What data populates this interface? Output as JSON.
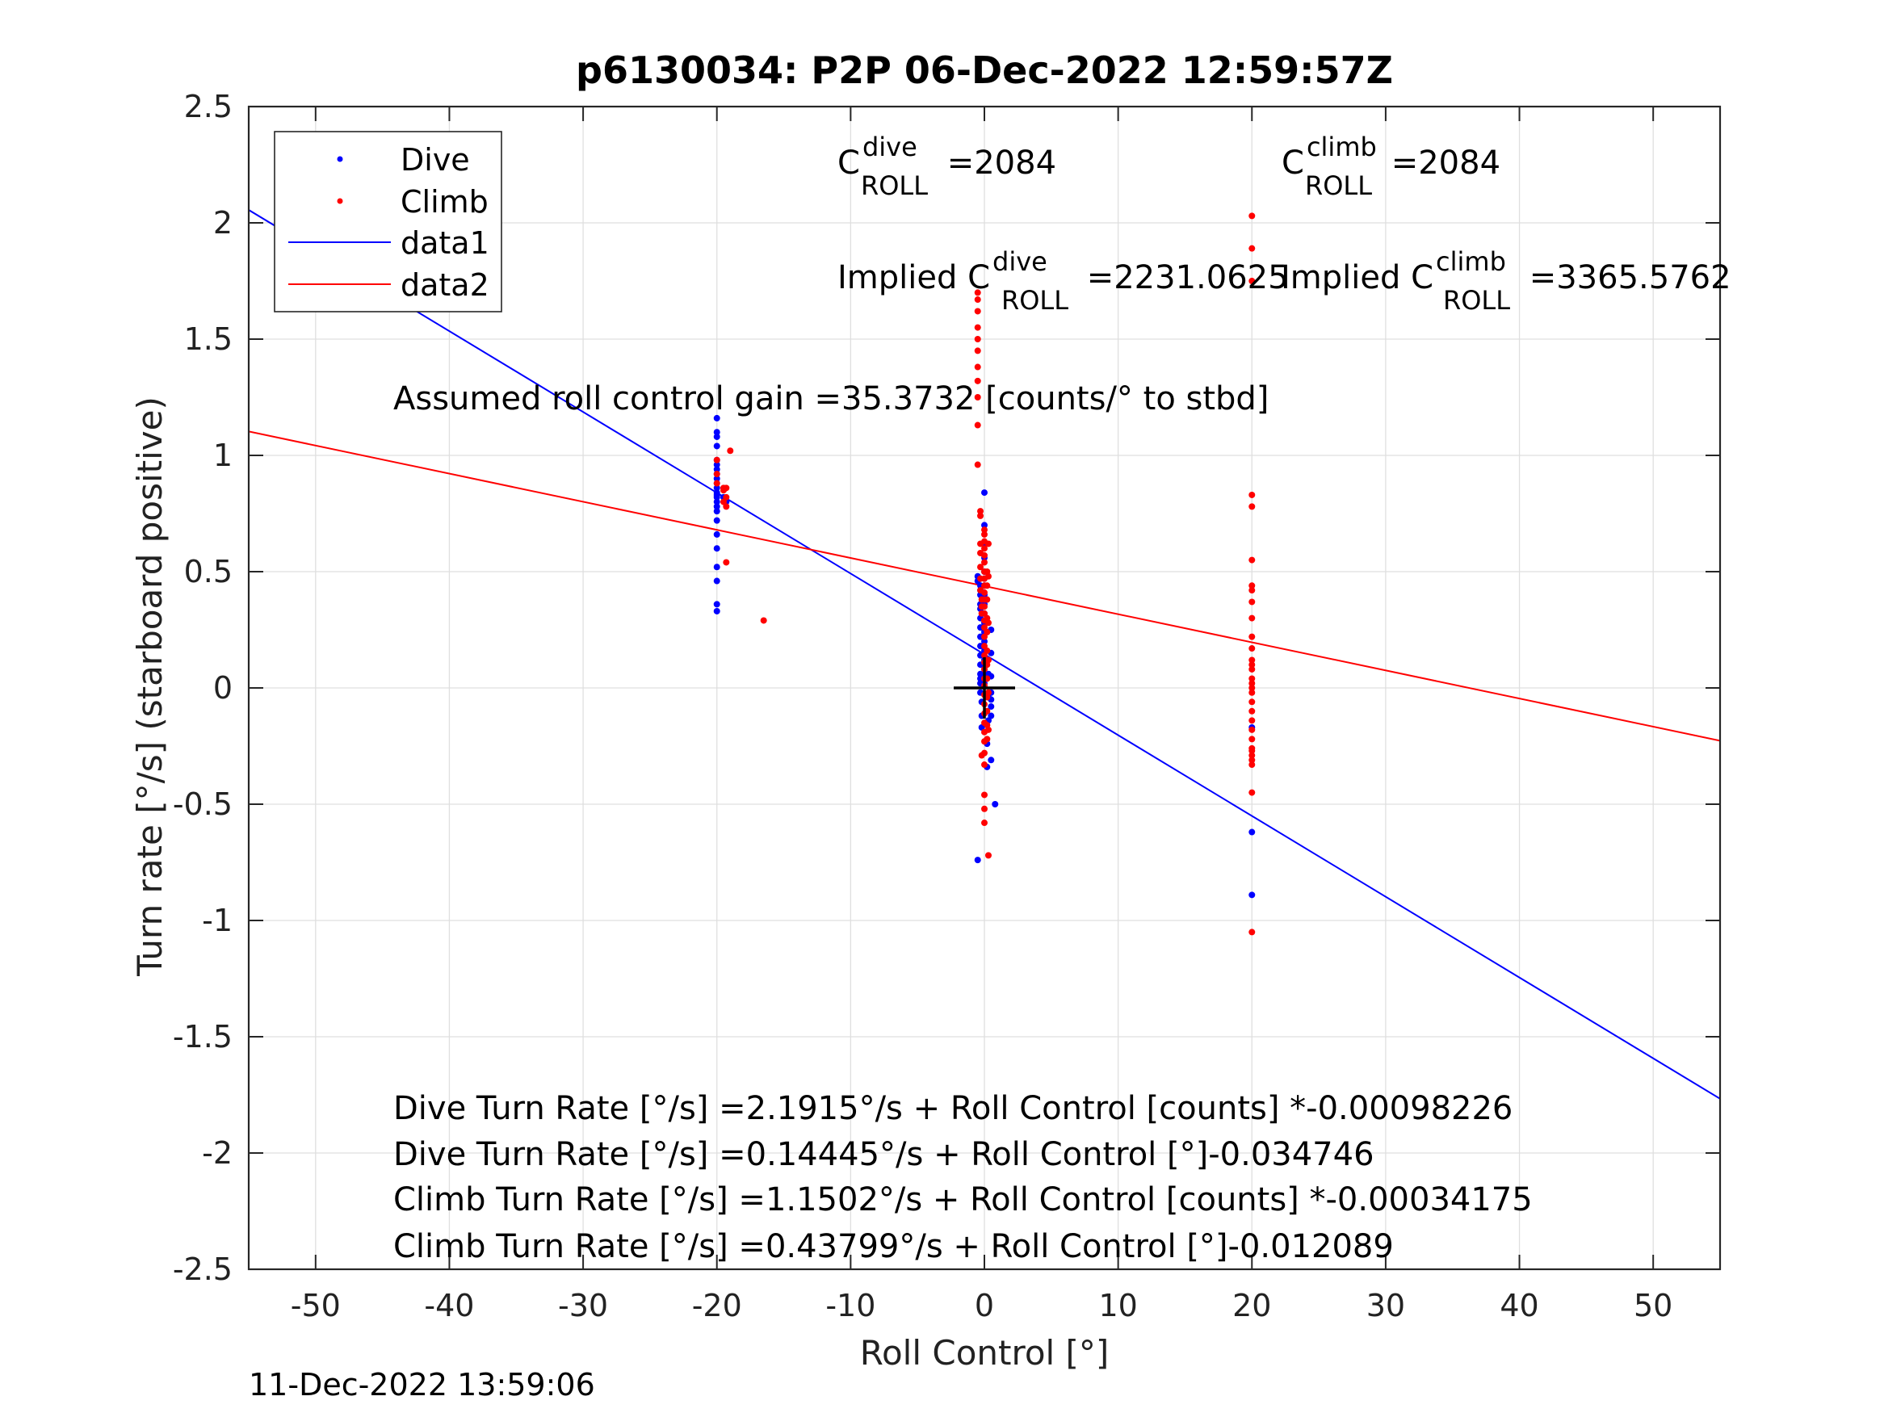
{
  "chart_data": {
    "type": "scatter",
    "title": "p6130034: P2P 06-Dec-2022 12:59:57Z",
    "xlabel": "Roll Control [°]",
    "ylabel": "Turn rate [°/s] (starboard positive)",
    "xlim": [
      -55,
      55
    ],
    "ylim": [
      -2.5,
      2.5
    ],
    "xticks": [
      -50,
      -40,
      -30,
      -20,
      -10,
      0,
      10,
      20,
      30,
      40,
      50
    ],
    "yticks": [
      -2.5,
      -2,
      -1.5,
      -1,
      -0.5,
      0,
      0.5,
      1,
      1.5,
      2,
      2.5
    ],
    "grid": true,
    "legend_position": "top-left",
    "legend": [
      "Dive",
      "Climb",
      "data1",
      "data2"
    ],
    "colors": {
      "dive": "#0000ff",
      "climb": "#ff0000",
      "axes": "#262626",
      "grid": "#dfdfdf"
    },
    "series": [
      {
        "name": "Dive",
        "kind": "points",
        "color": "#0000ff",
        "x": [
          -20,
          -20,
          -20,
          -20,
          -20,
          -20,
          -20,
          -20,
          -20,
          -20,
          -20,
          -20,
          -20,
          -20,
          -20,
          -20,
          -20,
          -20,
          -20,
          -20,
          -20,
          -20,
          -20,
          -20,
          -19.5,
          -19.3,
          -0.5,
          -0.5,
          -0.3,
          -0.3,
          -0.3,
          -0.3,
          -0.3,
          -0.3,
          -0.3,
          -0.3,
          -0.3,
          -0.3,
          -0.3,
          -0.3,
          -0.3,
          -0.3,
          -0.3,
          -0.2,
          -0.2,
          -0.2,
          0,
          0,
          0,
          0,
          0,
          0,
          0,
          0,
          0,
          0,
          0,
          0,
          0,
          0,
          0,
          0,
          0,
          0,
          0.2,
          0.2,
          0.3,
          0.3,
          0.3,
          0.5,
          0.5,
          0.5,
          0.5,
          0.5,
          0.5,
          0.8,
          0.5,
          0.5,
          -0.5,
          20,
          20,
          20
        ],
        "y": [
          1.16,
          1.1,
          1.08,
          1.04,
          0.98,
          0.96,
          0.94,
          0.92,
          0.9,
          0.88,
          0.86,
          0.84,
          0.82,
          0.8,
          0.76,
          0.72,
          0.66,
          0.6,
          0.52,
          0.46,
          0.36,
          0.33,
          0.83,
          0.78,
          0.82,
          0.8,
          0.48,
          0.46,
          0.44,
          0.42,
          0.4,
          0.36,
          0.34,
          0.3,
          0.26,
          0.22,
          0.18,
          0.14,
          0.1,
          0.06,
          0.04,
          0.02,
          -0.02,
          -0.06,
          -0.12,
          -0.17,
          0.84,
          0.7,
          0.62,
          0.56,
          0.5,
          0.47,
          0.44,
          0.4,
          0.36,
          0.32,
          0.28,
          0.24,
          0.2,
          0.16,
          0.12,
          0.08,
          0.05,
          0.02,
          -0.24,
          -0.34,
          -0.14,
          0.06,
          -0.04,
          0.25,
          0.15,
          0.05,
          -0.02,
          -0.08,
          -0.05,
          -0.5,
          -0.31,
          -0.12,
          -0.74,
          -0.17,
          -0.62,
          -0.89
        ]
      },
      {
        "name": "Climb",
        "kind": "points",
        "color": "#ff0000",
        "x": [
          -20,
          -20,
          -20,
          -19.5,
          -19.5,
          -19.3,
          -19.3,
          -19.5,
          -19.3,
          -19.3,
          -19,
          -16.5,
          -0.5,
          -0.5,
          -0.5,
          -0.5,
          -0.5,
          -0.5,
          -0.5,
          -0.5,
          -0.5,
          -0.5,
          -0.5,
          -0.3,
          -0.3,
          -0.3,
          -0.3,
          -0.3,
          -0.3,
          -0.3,
          -0.2,
          -0.2,
          -0.2,
          0,
          0,
          0,
          0,
          0,
          0,
          0,
          0,
          0,
          0,
          0,
          0,
          0,
          0,
          0,
          0,
          0,
          0,
          0,
          0,
          0,
          0,
          0,
          0,
          0,
          0,
          0,
          0,
          0,
          0,
          0,
          0,
          0,
          0.2,
          0.2,
          0.2,
          0.2,
          0.2,
          0.2,
          0.2,
          0.2,
          0.2,
          0.2,
          0.2,
          0.2,
          0.3,
          0.3,
          0.3,
          0.3,
          0.3,
          0.3,
          0.3,
          -0.2,
          20,
          20,
          20,
          20,
          20,
          20,
          20,
          20,
          20,
          20,
          20,
          20,
          20,
          20,
          20,
          20,
          20,
          20,
          20,
          20,
          20,
          20,
          20,
          20,
          20,
          20,
          20,
          20,
          20,
          20,
          20
        ],
        "y": [
          0.98,
          0.92,
          0.88,
          0.86,
          0.85,
          0.82,
          0.78,
          0.8,
          0.86,
          0.54,
          1.02,
          0.29,
          1.7,
          1.67,
          1.62,
          1.55,
          1.5,
          1.45,
          1.38,
          1.32,
          1.25,
          1.13,
          0.96,
          0.76,
          0.74,
          0.62,
          0.58,
          0.52,
          0.47,
          0.42,
          0.38,
          0.35,
          0.32,
          0.68,
          0.66,
          0.63,
          0.6,
          0.57,
          0.54,
          0.5,
          0.47,
          0.44,
          0.41,
          0.38,
          0.35,
          0.32,
          0.29,
          0.26,
          0.22,
          0.18,
          0.14,
          0.11,
          0.08,
          0.04,
          0.01,
          -0.03,
          -0.07,
          -0.11,
          -0.15,
          -0.19,
          -0.23,
          -0.28,
          -0.33,
          -0.46,
          -0.52,
          -0.58,
          0.5,
          0.44,
          0.38,
          0.3,
          0.24,
          0.16,
          0.1,
          0.04,
          -0.04,
          -0.1,
          -0.16,
          -0.22,
          0.62,
          0.48,
          0.28,
          0.12,
          -0.02,
          -0.18,
          -0.72,
          -0.29,
          2.03,
          1.89,
          1.75,
          0.83,
          0.78,
          0.55,
          0.44,
          0.42,
          0.37,
          0.3,
          0.22,
          0.17,
          0.1,
          0.08,
          0.04,
          0.02,
          -0.02,
          -0.06,
          -0.1,
          -0.14,
          -0.18,
          -0.22,
          -0.26,
          -0.29,
          -0.31,
          -0.33,
          -0.27,
          -0.45,
          -1.05,
          0.12,
          0.0
        ]
      },
      {
        "name": "data1",
        "kind": "line",
        "color": "#0000ff",
        "intercept": 0.14445,
        "slope": -0.034746
      },
      {
        "name": "data2",
        "kind": "line",
        "color": "#ff0000",
        "intercept": 0.43799,
        "slope": -0.012089
      }
    ],
    "annotations": {
      "c_roll_dive": {
        "prefix": "C",
        "sup": "dive",
        "sub": "ROLL",
        "value": " =2084"
      },
      "c_roll_climb": {
        "prefix": "C",
        "sup": "climb",
        "sub": "ROLL",
        "value": " =2084"
      },
      "implied_dive": {
        "prefix": "Implied C",
        "sup": "dive",
        "sub": "ROLL",
        "value": " =2231.0625"
      },
      "implied_climb": {
        "prefix": "Implied C",
        "sup": "climb",
        "sub": "ROLL",
        "value": " =3365.5762"
      },
      "gain": "Assumed roll control gain =35.3732 [counts/° to stbd]",
      "fit_lines": [
        "Dive Turn Rate [°/s] =2.1915°/s + Roll Control [counts] *-0.00098226",
        "Dive Turn Rate [°/s] =0.14445°/s + Roll Control [°]-0.034746",
        "Climb Turn Rate [°/s] =1.1502°/s + Roll Control [counts] *-0.00034175",
        "Climb Turn Rate [°/s] =0.43799°/s + Roll Control [°]-0.012089"
      ]
    },
    "crosshair": {
      "x": 0,
      "y": 0
    }
  },
  "timestamp": "11-Dec-2022 13:59:06"
}
